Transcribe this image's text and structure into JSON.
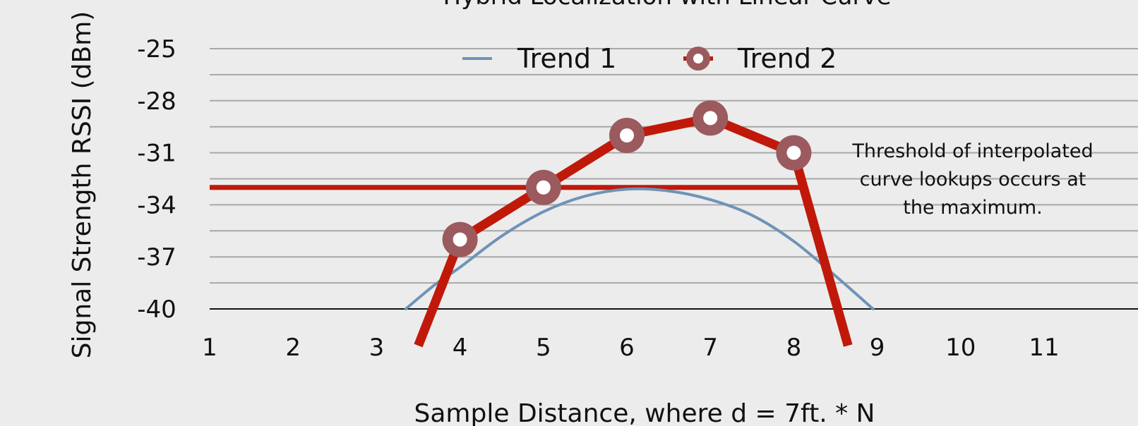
{
  "chart_data": {
    "type": "line",
    "title": "Hybrid Localization with Linear Curve",
    "xlabel": "Sample Distance, where d = 7ft. * N",
    "ylabel": "Signal Strength RSSI (dBm)",
    "x_ticks": [
      "1",
      "2",
      "3",
      "4",
      "5",
      "6",
      "7",
      "8",
      "9",
      "10",
      "11"
    ],
    "y_ticks": [
      "-25",
      "-28",
      "-31",
      "-34",
      "-37",
      "-40"
    ],
    "y_tick_values": [
      -25,
      -28,
      -31,
      -34,
      -37,
      -40
    ],
    "xlim": [
      1,
      11.6
    ],
    "ylim": [
      -42,
      -24
    ],
    "grid": true,
    "legend_position": "top",
    "series": [
      {
        "name": "Trend 1",
        "color": "#6f93b8",
        "style": "smooth",
        "x": [
          3.35,
          3.7,
          4,
          4.5,
          5,
          5.5,
          6,
          6.5,
          7,
          7.5,
          8,
          8.5,
          8.95
        ],
        "y": [
          -40,
          -38.6,
          -37.6,
          -35.8,
          -34.4,
          -33.5,
          -33.1,
          -33.2,
          -33.7,
          -34.6,
          -36.1,
          -38.1,
          -40
        ]
      },
      {
        "name": "Trend 2",
        "color": "#c0190a",
        "marker_color": "#9b5a5e",
        "x": [
          3.5,
          4,
          5,
          6,
          7,
          8,
          8.65
        ],
        "y": [
          -42,
          -36,
          -33,
          -30,
          -29,
          -31,
          -42
        ],
        "marked": [
          false,
          true,
          true,
          true,
          true,
          true,
          false
        ]
      }
    ],
    "threshold": {
      "y": -33,
      "x_start": 1,
      "x_end": 8.15,
      "color": "#c0190a"
    },
    "annotation": {
      "lines": [
        "Threshold of interpolated",
        "curve lookups occurs at",
        "the maximum."
      ]
    }
  }
}
